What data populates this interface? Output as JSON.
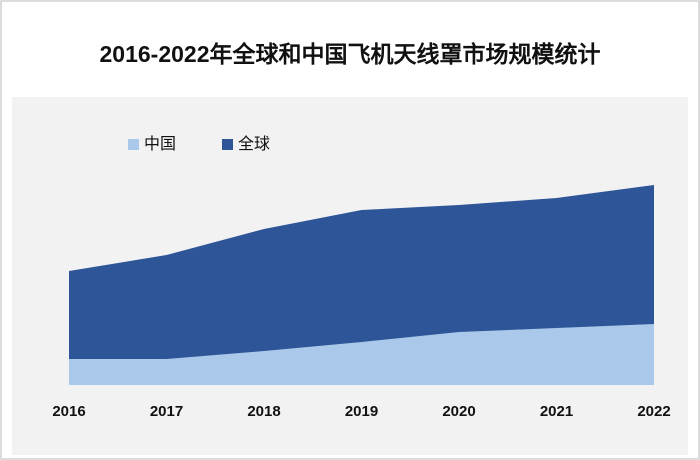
{
  "chart_data": {
    "type": "area",
    "title": "2016-2022年全球和中国飞机天线罩市场规模统计",
    "categories": [
      "2016",
      "2017",
      "2018",
      "2019",
      "2020",
      "2021",
      "2022"
    ],
    "series": [
      {
        "name": "全球",
        "color": "#2e5597",
        "values": [
          114,
          130,
          156,
          175,
          180,
          187,
          200
        ]
      },
      {
        "name": "中国",
        "color": "#a9c8ea",
        "values": [
          26,
          26,
          34,
          43,
          53,
          57,
          61
        ]
      }
    ],
    "ylim": [
      0,
      275
    ],
    "legend": "top-left"
  }
}
